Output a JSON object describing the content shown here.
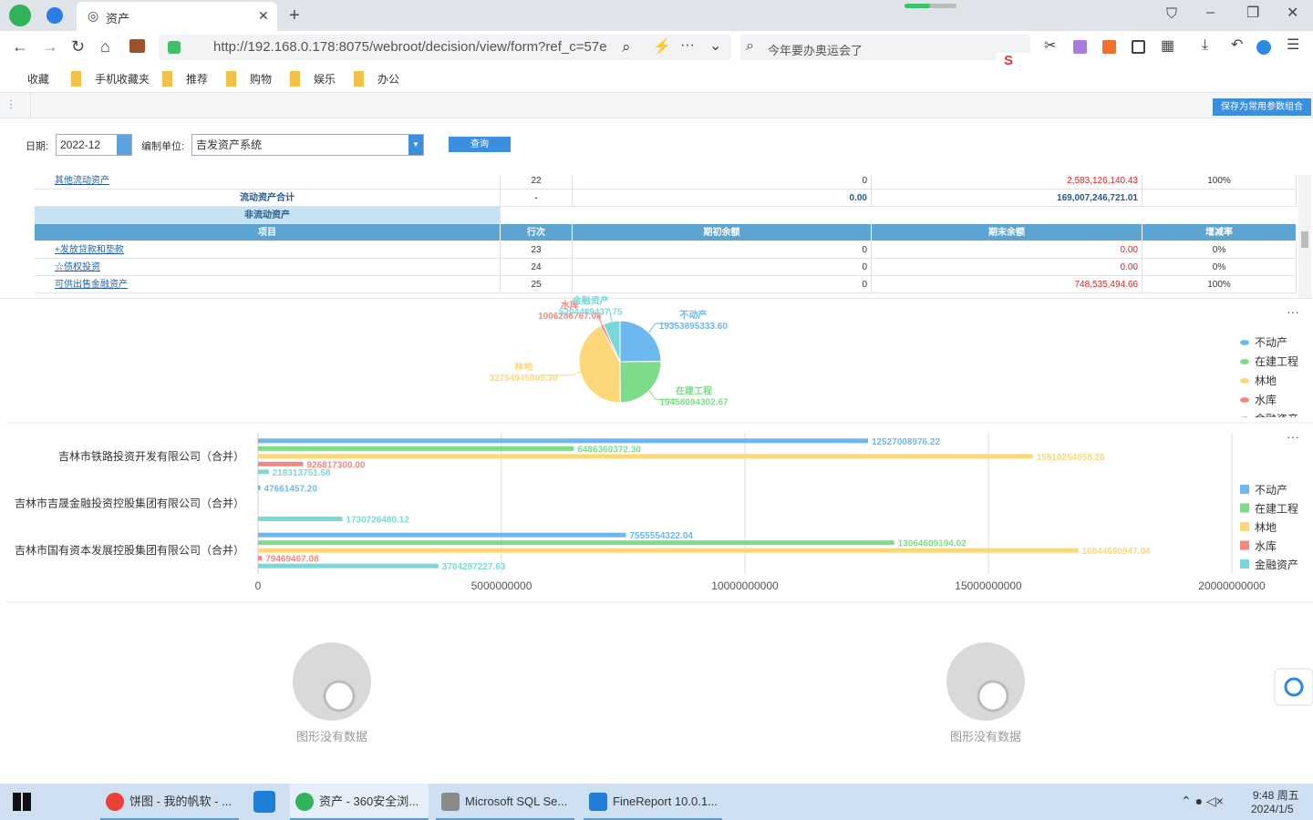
{
  "browser": {
    "tab_title": "资产",
    "url": "http://192.168.0.178:8075/webroot/decision/view/form?ref_c=57e",
    "search": "今年要办奥运会了",
    "bookmarks": [
      "收藏",
      "手机收藏夹",
      "推荐",
      "购物",
      "娱乐",
      "办公"
    ]
  },
  "toolbar": {
    "save_button": "保存为常用参数组合",
    "date_label": "日期:",
    "date_value": "2022-12",
    "unit_label": "编制单位:",
    "unit_value": "吉发资产系统",
    "query_button": "查询"
  },
  "table": {
    "rows_before": [
      [
        "其他流动资产",
        "22",
        "0",
        "2,583,126,140.43",
        "100%"
      ],
      [
        "流动资产合计",
        "-",
        "0.00",
        "169,007,246,721.01"
      ]
    ],
    "section": "非流动资产",
    "header": [
      "项目",
      "行次",
      "期初余额",
      "期末余额",
      "增减率"
    ],
    "rows": [
      [
        "+发放贷款和垫款",
        "23",
        "0",
        "0.00",
        "0%"
      ],
      [
        "☆债权投资",
        "24",
        "0",
        "0.00",
        "0%"
      ],
      [
        "可供出售金融资产",
        "25",
        "0",
        "748,535,494.66",
        "100%"
      ]
    ]
  },
  "chart_data": [
    {
      "type": "pie",
      "categories": [
        "不动产",
        "在建工程",
        "林地",
        "水库",
        "金融资产"
      ],
      "values": [
        19353895333.6,
        19458094302.67,
        32754945805.3,
        1006286767.08,
        5204489437.75
      ],
      "value_labels": [
        "19353895333.60",
        "19458094302.67",
        "32754945805.30",
        "1006286767.08",
        "5204489437.75"
      ],
      "colors": [
        "#6cb8f0",
        "#7ddc8a",
        "#fcd87a",
        "#f08a80",
        "#7ad8d8"
      ],
      "legend": "right"
    },
    {
      "type": "hbar",
      "categories": [
        "吉林市铁路投资开发有限公司（合并）",
        "吉林市吉晟金融投资控股集团有限公司（合并）",
        "吉林市国有资本发展控股集团有限公司（合并）"
      ],
      "series": [
        {
          "name": "不动产",
          "color": "#6cb8f0",
          "values": [
            12527008976.22,
            47661457.2,
            7555554322.04
          ],
          "value_labels": [
            "12527008976.22",
            "47661457.20",
            "7555554322.04"
          ]
        },
        {
          "name": "在建工程",
          "color": "#7ddc8a",
          "values": [
            6486360372.3,
            null,
            13064609194.02
          ],
          "value_labels": [
            "6486360372.30",
            null,
            "13064609194.02"
          ]
        },
        {
          "name": "林地",
          "color": "#fcd87a",
          "values": [
            15910254858.26,
            null,
            16844690947.04
          ],
          "value_labels": [
            "15910254858.26",
            null,
            "16844690947.04"
          ]
        },
        {
          "name": "水库",
          "color": "#f08a80",
          "values": [
            926817300.0,
            null,
            79469467.08
          ],
          "value_labels": [
            "926817300.00",
            null,
            "79469467.08"
          ]
        },
        {
          "name": "金融资产",
          "color": "#7ad8d8",
          "values": [
            218313751.58,
            1730726480.12,
            3704287227.63
          ],
          "value_labels": [
            "218313751.58",
            "1730726480.12",
            "3704287227.63"
          ]
        }
      ],
      "xlim": [
        0,
        20000000000
      ],
      "xticks": [
        0,
        5000000000,
        10000000000,
        15000000000,
        20000000000
      ],
      "grid": true,
      "legend": "right"
    }
  ],
  "placeholders": [
    "图形没有数据",
    "图形没有数据"
  ],
  "taskbar": {
    "items": [
      "饼图 - 我的帆软 - ...",
      "资产 - 360安全浏...",
      "Microsoft SQL Se...",
      "FineReport 10.0.1..."
    ],
    "time": "9:48 周五",
    "date": "2024/1/5"
  }
}
